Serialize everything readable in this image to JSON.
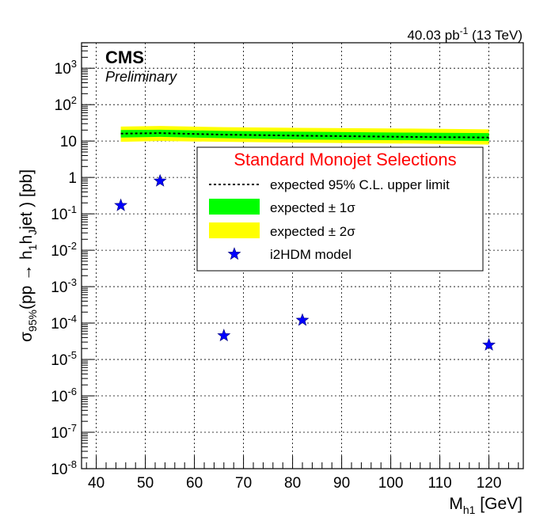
{
  "header": {
    "lumi_value": "40.03 pb",
    "lumi_exp": "-1",
    "lumi_energy": " (13 TeV)",
    "cms": "CMS",
    "preliminary": "Preliminary"
  },
  "axes": {
    "x_main": "M",
    "x_sub": "h1",
    "x_unit": " [GeV]",
    "y_sigma": "σ",
    "y_sigma_sub": "95%",
    "y_open": "(pp → h",
    "y_h1": "1",
    "y_h": "h",
    "y_hJ": "J",
    "y_close": "jet ) [pb]"
  },
  "legend": {
    "title": "Standard Monojet Selections",
    "entries": [
      "expected 95% C.L. upper limit",
      "expected ± 1σ",
      "expected ± 2σ",
      "i2HDM model"
    ]
  },
  "colors": {
    "band_1sigma": "#00ff00",
    "band_2sigma": "#ffff00",
    "expected_line": "#000000",
    "model_marker": "#0000ff",
    "legend_title": "#ff0000"
  },
  "chart_data": {
    "type": "line",
    "log_y": true,
    "grid": true,
    "xlim": [
      37,
      127
    ],
    "ylim_exponents": [
      -8,
      3.7
    ],
    "x_ticks": [
      40,
      50,
      60,
      70,
      80,
      90,
      100,
      110,
      120
    ],
    "y_tick_exponents": [
      -8,
      -7,
      -6,
      -5,
      -4,
      -3,
      -2,
      -1,
      0,
      1,
      2,
      3
    ],
    "legend_position": "center-right",
    "expected_limit": {
      "x": [
        45,
        53,
        66,
        82,
        104,
        120
      ],
      "y": [
        16,
        16.5,
        15,
        14,
        13,
        12.5
      ]
    },
    "band_1sigma": {
      "x": [
        45,
        53,
        66,
        82,
        104,
        120
      ],
      "lower": [
        12.5,
        13,
        12,
        11,
        10.5,
        10
      ],
      "upper": [
        20,
        20.5,
        19,
        18,
        17,
        16.5
      ]
    },
    "band_2sigma": {
      "x": [
        45,
        53,
        66,
        82,
        104,
        120
      ],
      "lower": [
        9.5,
        10,
        9.5,
        9,
        8.5,
        8
      ],
      "upper": [
        25,
        26,
        24,
        23,
        22,
        21
      ]
    },
    "model_points": {
      "x": [
        45,
        53,
        66,
        82,
        120
      ],
      "y": [
        0.17,
        0.8,
        4.5e-05,
        0.00012,
        2.5e-05
      ]
    }
  }
}
